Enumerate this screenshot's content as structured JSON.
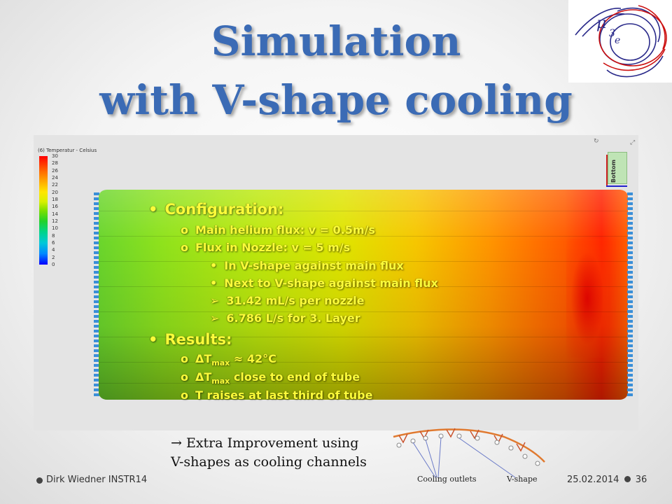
{
  "title": {
    "line1": "Simulation",
    "line2": "with V-shape cooling"
  },
  "simulation": {
    "plot_label": "(6) Temperatur - Celsius",
    "scale_ticks": [
      "30",
      "28",
      "26",
      "24",
      "22",
      "20",
      "18",
      "16",
      "14",
      "12",
      "10",
      "8",
      "6",
      "4",
      "2",
      "0"
    ],
    "orientation_label": "Bottom"
  },
  "overlay": {
    "configuration_heading": "Configuration:",
    "config_items": [
      {
        "pre": "Main ",
        "bold": "helium",
        "post": " flux: v = 0.5m/s"
      },
      {
        "text": "Flux in Nozzle: v = 5 m/s"
      }
    ],
    "nozzle_items": [
      "In V-shape against main flux",
      "Next to V-shape against main flux"
    ],
    "arrow_items": [
      "31.42 mL/s per nozzle",
      "6.786 L/s for 3. Layer"
    ],
    "results_heading": "Results:",
    "result_items": [
      {
        "prefix": "ΔT",
        "sub": "max",
        "text": " ≈ 42°C"
      },
      {
        "prefix": "ΔT",
        "sub": "max",
        "text": " close to end of tube"
      },
      {
        "text": "T raises at last third of tube"
      }
    ]
  },
  "note": {
    "line1": "→ Extra Improvement using",
    "line2": "V-shapes as cooling channels"
  },
  "diagram": {
    "label_outlets": "Cooling outlets",
    "label_vshape": "V-shape"
  },
  "footer": {
    "left": "Dirk Wiedner INSTR14",
    "right_date": "25.02.2014",
    "right_page": "36"
  },
  "colors": {
    "title": "#3b6bb5",
    "overlay_text": "#fbfb3a",
    "hot": "#e60000",
    "cool": "#0000ff"
  }
}
